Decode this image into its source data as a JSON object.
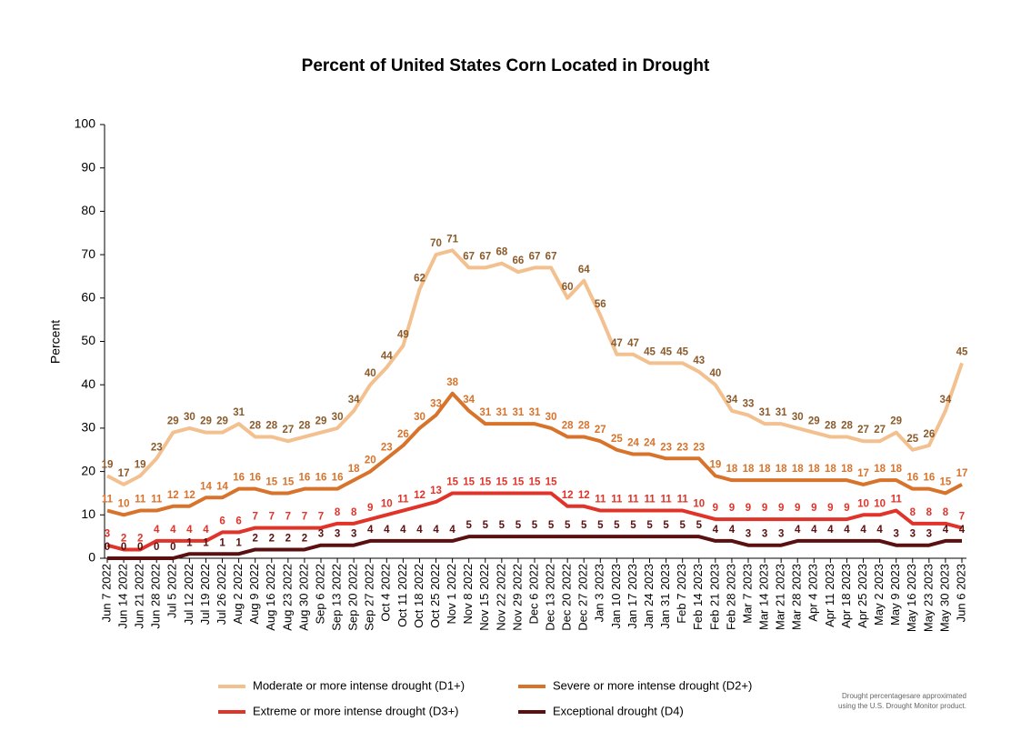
{
  "chart_data": {
    "type": "line",
    "title": "Percent of United States Corn Located in Drought",
    "y_label": "Percent",
    "note": [
      "Drought percentagesare approximated",
      "using the U.S. Drought Monitor product."
    ],
    "categories": [
      "Jun 7 2022",
      "Jun 14 2022",
      "Jun 21 2022",
      "Jun 28 2022",
      "Jul 5 2022",
      "Jul 12 2022",
      "Jul 19 2022",
      "Jul 26 2022",
      "Aug 2 2022",
      "Aug 9 2022",
      "Aug 16 2022",
      "Aug 23 2022",
      "Aug 30 2022",
      "Sep 6 2022",
      "Sep 13 2022",
      "Sep 20 2022",
      "Sep 27 2022",
      "Oct 4 2022",
      "Oct 11 2022",
      "Oct 18 2022",
      "Oct 25 2022",
      "Nov 1 2022",
      "Nov 8 2022",
      "Nov 15 2022",
      "Nov 22 2022",
      "Nov 29 2022",
      "Dec 6 2022",
      "Dec 13 2022",
      "Dec 20 2022",
      "Dec 27 2022",
      "Jan 3 2023",
      "Jan 10 2023",
      "Jan 17 2023",
      "Jan 24 2023",
      "Jan 31 2023",
      "Feb 7 2023",
      "Feb 14 2023",
      "Feb 21 2023",
      "Feb 28 2023",
      "Mar 7 2023",
      "Mar 14 2023",
      "Mar 21 2023",
      "Mar 28 2023",
      "Apr 4 2023",
      "Apr 11 2023",
      "Apr 18 2023",
      "Apr 25 2023",
      "May 2 2023",
      "May 9 2023",
      "May 16 2023",
      "May 23 2023",
      "May 30 2023",
      "Jun 6 2023"
    ],
    "series": [
      {
        "name": "Moderate or more intense drought (D1+)",
        "color": "#f3c08f",
        "label_color": "#8a5a2b",
        "values": [
          19,
          17,
          19,
          23,
          29,
          30,
          29,
          29,
          31,
          28,
          28,
          27,
          28,
          29,
          30,
          34,
          40,
          44,
          49,
          62,
          70,
          71,
          67,
          67,
          68,
          66,
          67,
          67,
          60,
          64,
          56,
          47,
          47,
          45,
          45,
          45,
          43,
          40,
          34,
          33,
          31,
          31,
          30,
          29,
          28,
          28,
          27,
          27,
          29,
          25,
          26,
          34,
          45
        ]
      },
      {
        "name": "Severe or more intense drought (D2+)",
        "color": "#d8732c",
        "label_color": "#d8732c",
        "values": [
          11,
          10,
          11,
          11,
          12,
          12,
          14,
          14,
          16,
          16,
          15,
          15,
          16,
          16,
          16,
          18,
          20,
          23,
          26,
          30,
          33,
          38,
          34,
          31,
          31,
          31,
          31,
          30,
          28,
          28,
          27,
          25,
          24,
          24,
          23,
          23,
          23,
          19,
          18,
          18,
          18,
          18,
          18,
          18,
          18,
          18,
          17,
          18,
          18,
          16,
          16,
          15,
          17
        ]
      },
      {
        "name": "Extreme or more intense drought (D3+)",
        "color": "#e0342a",
        "label_color": "#e0342a",
        "values": [
          3,
          2,
          2,
          4,
          4,
          4,
          4,
          6,
          6,
          7,
          7,
          7,
          7,
          7,
          8,
          8,
          9,
          10,
          11,
          12,
          13,
          15,
          15,
          15,
          15,
          15,
          15,
          15,
          12,
          12,
          11,
          11,
          11,
          11,
          11,
          11,
          10,
          9,
          9,
          9,
          9,
          9,
          9,
          9,
          9,
          9,
          10,
          10,
          11,
          8,
          8,
          8,
          7
        ]
      },
      {
        "name": "Exceptional drought (D4)",
        "color": "#5a1010",
        "label_color": "#5a1010",
        "values": [
          0,
          0,
          0,
          0,
          0,
          1,
          1,
          1,
          1,
          2,
          2,
          2,
          2,
          3,
          3,
          3,
          4,
          4,
          4,
          4,
          4,
          4,
          5,
          5,
          5,
          5,
          5,
          5,
          5,
          5,
          5,
          5,
          5,
          5,
          5,
          5,
          5,
          4,
          4,
          3,
          3,
          3,
          4,
          4,
          4,
          4,
          4,
          4,
          3,
          3,
          3,
          4,
          4
        ]
      }
    ],
    "ylim": [
      0,
      100
    ],
    "yticks": [
      0,
      10,
      20,
      30,
      40,
      50,
      60,
      70,
      80,
      90,
      100
    ]
  }
}
